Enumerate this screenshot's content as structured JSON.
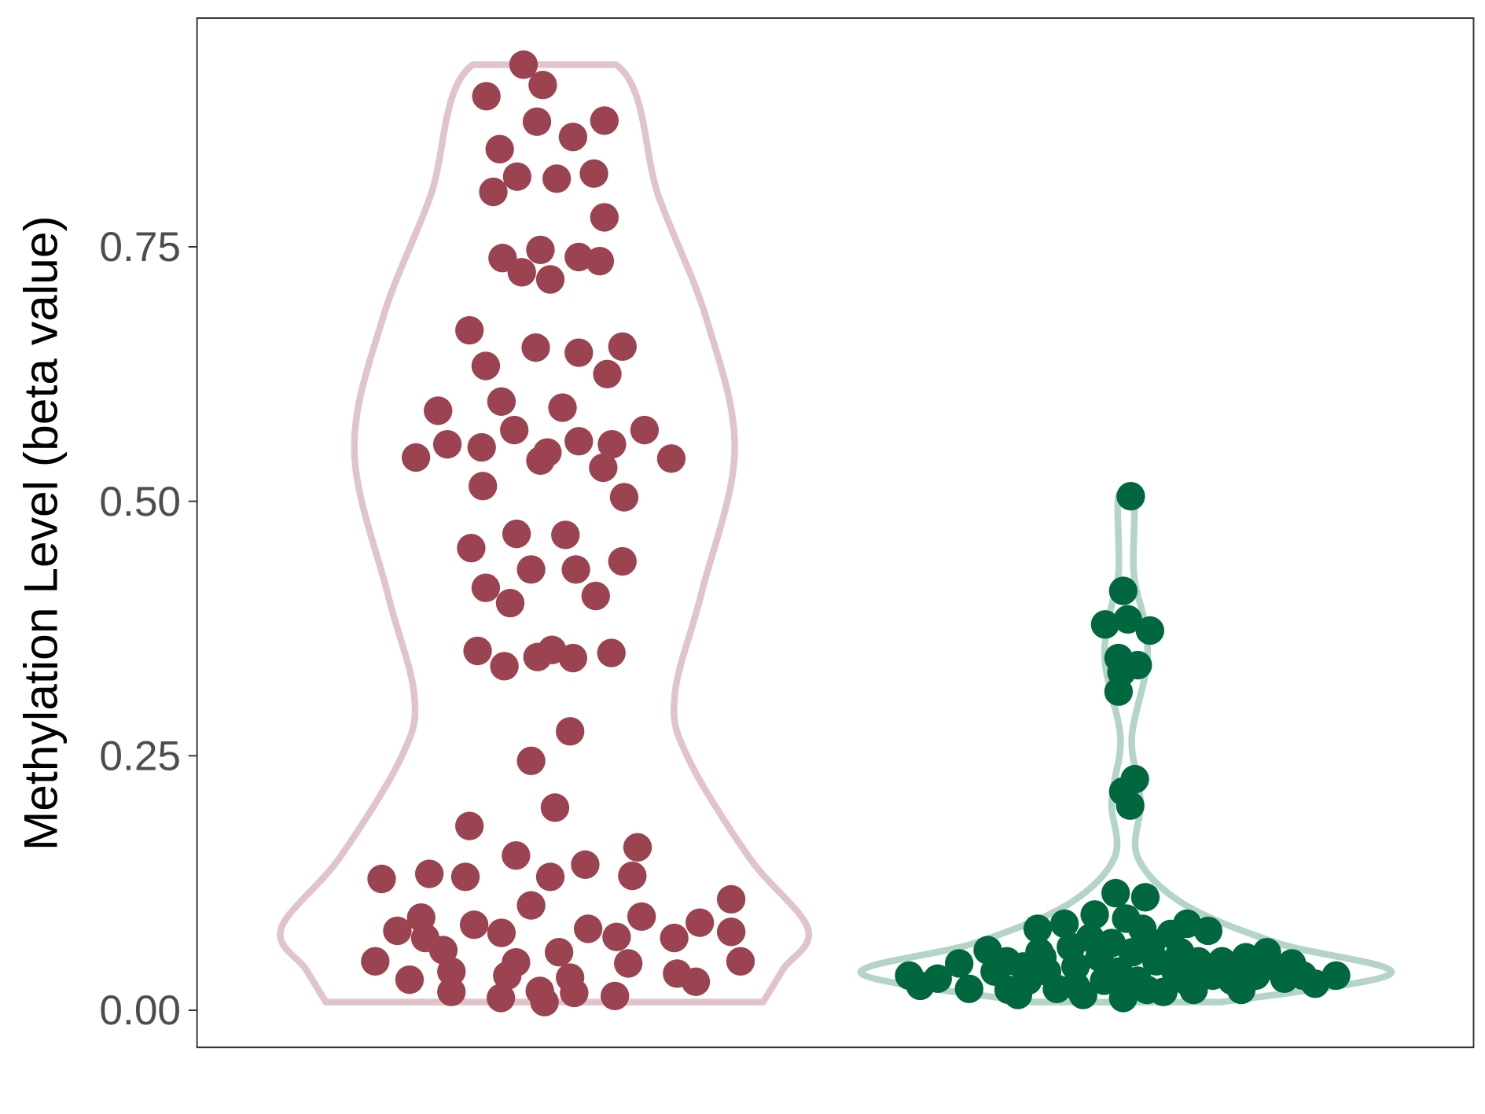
{
  "chart_data": {
    "type": "violin",
    "title": "",
    "xlabel": "",
    "ylabel": "Methylation Level (beta value)",
    "ylim": [
      -0.036,
      0.975
    ],
    "yticks": [
      0.0,
      0.25,
      0.5,
      0.75
    ],
    "ytick_labels": [
      "0.00",
      "0.25",
      "0.50",
      "0.75"
    ],
    "grid": false,
    "legend": "none",
    "groups": [
      {
        "position": 1,
        "point_color": "#9B4350",
        "violin_color": "#E0C4CA",
        "violin_density": [
          [
            0.008,
            0.376
          ],
          [
            0.04,
            0.41
          ],
          [
            0.08,
            0.453
          ],
          [
            0.15,
            0.352
          ],
          [
            0.25,
            0.245
          ],
          [
            0.31,
            0.224
          ],
          [
            0.41,
            0.27
          ],
          [
            0.55,
            0.327
          ],
          [
            0.68,
            0.278
          ],
          [
            0.8,
            0.196
          ],
          [
            0.929,
            0.123
          ]
        ],
        "points": [
          [
            0.964,
            0.929
          ],
          [
            0.997,
            0.909
          ],
          [
            0.9,
            0.898
          ],
          [
            0.987,
            0.873
          ],
          [
            1.103,
            0.874
          ],
          [
            1.049,
            0.858
          ],
          [
            0.923,
            0.846
          ],
          [
            0.953,
            0.819
          ],
          [
            1.021,
            0.817
          ],
          [
            1.085,
            0.822
          ],
          [
            0.912,
            0.804
          ],
          [
            1.103,
            0.779
          ],
          [
            0.928,
            0.739
          ],
          [
            0.993,
            0.747
          ],
          [
            1.059,
            0.74
          ],
          [
            1.095,
            0.736
          ],
          [
            0.961,
            0.725
          ],
          [
            1.01,
            0.718
          ],
          [
            0.871,
            0.668
          ],
          [
            0.985,
            0.651
          ],
          [
            1.059,
            0.646
          ],
          [
            1.134,
            0.652
          ],
          [
            0.899,
            0.633
          ],
          [
            1.108,
            0.625
          ],
          [
            0.926,
            0.598
          ],
          [
            1.031,
            0.592
          ],
          [
            0.817,
            0.589
          ],
          [
            0.948,
            0.57
          ],
          [
            1.172,
            0.57
          ],
          [
            0.779,
            0.543
          ],
          [
            0.833,
            0.556
          ],
          [
            0.892,
            0.553
          ],
          [
            1.005,
            0.548
          ],
          [
            0.993,
            0.54
          ],
          [
            1.059,
            0.559
          ],
          [
            1.116,
            0.556
          ],
          [
            1.101,
            0.533
          ],
          [
            1.218,
            0.542
          ],
          [
            0.894,
            0.515
          ],
          [
            1.137,
            0.504
          ],
          [
            0.952,
            0.468
          ],
          [
            1.036,
            0.467
          ],
          [
            0.874,
            0.454
          ],
          [
            0.977,
            0.433
          ],
          [
            1.054,
            0.433
          ],
          [
            1.134,
            0.441
          ],
          [
            0.899,
            0.415
          ],
          [
            0.941,
            0.4
          ],
          [
            1.088,
            0.407
          ],
          [
            0.885,
            0.353
          ],
          [
            0.931,
            0.338
          ],
          [
            0.988,
            0.347
          ],
          [
            1.013,
            0.354
          ],
          [
            1.049,
            0.346
          ],
          [
            1.115,
            0.351
          ],
          [
            1.044,
            0.274
          ],
          [
            0.977,
            0.245
          ],
          [
            1.018,
            0.199
          ],
          [
            0.871,
            0.181
          ],
          [
            0.951,
            0.152
          ],
          [
            1.16,
            0.16
          ],
          [
            0.72,
            0.129
          ],
          [
            0.802,
            0.134
          ],
          [
            0.864,
            0.131
          ],
          [
            1.01,
            0.131
          ],
          [
            1.07,
            0.143
          ],
          [
            1.151,
            0.132
          ],
          [
            1.321,
            0.109
          ],
          [
            0.977,
            0.103
          ],
          [
            0.788,
            0.091
          ],
          [
            1.167,
            0.092
          ],
          [
            0.747,
            0.078
          ],
          [
            0.795,
            0.071
          ],
          [
            0.879,
            0.084
          ],
          [
            0.926,
            0.076
          ],
          [
            1.075,
            0.08
          ],
          [
            1.124,
            0.072
          ],
          [
            1.223,
            0.071
          ],
          [
            1.267,
            0.086
          ],
          [
            1.321,
            0.077
          ],
          [
            0.826,
            0.059
          ],
          [
            0.709,
            0.048
          ],
          [
            1.025,
            0.057
          ],
          [
            0.951,
            0.047
          ],
          [
            1.144,
            0.046
          ],
          [
            1.337,
            0.048
          ],
          [
            0.768,
            0.03
          ],
          [
            0.84,
            0.038
          ],
          [
            0.936,
            0.034
          ],
          [
            1.044,
            0.032
          ],
          [
            1.228,
            0.036
          ],
          [
            1.26,
            0.028
          ],
          [
            0.84,
            0.018
          ],
          [
            0.925,
            0.012
          ],
          [
            0.992,
            0.019
          ],
          [
            1.0,
            0.008
          ],
          [
            1.051,
            0.017
          ],
          [
            1.121,
            0.014
          ]
        ]
      },
      {
        "position": 2,
        "point_color": "#00673F",
        "violin_color": "#B5D4C8",
        "violin_density": [
          [
            0.008,
            0.164
          ],
          [
            0.036,
            0.455
          ],
          [
            0.066,
            0.26
          ],
          [
            0.104,
            0.1
          ],
          [
            0.15,
            0.02
          ],
          [
            0.2,
            0.025
          ],
          [
            0.225,
            0.02
          ],
          [
            0.27,
            0.01
          ],
          [
            0.34,
            0.036
          ],
          [
            0.385,
            0.03
          ],
          [
            0.43,
            0.013
          ],
          [
            0.506,
            0.013
          ]
        ],
        "points": [
          [
            2.008,
            0.505
          ],
          [
            1.995,
            0.412
          ],
          [
            1.964,
            0.379
          ],
          [
            2.003,
            0.384
          ],
          [
            2.041,
            0.373
          ],
          [
            1.987,
            0.346
          ],
          [
            1.998,
            0.337
          ],
          [
            2.02,
            0.339
          ],
          [
            1.987,
            0.313
          ],
          [
            1.992,
            0.332
          ],
          [
            2.015,
            0.227
          ],
          [
            1.995,
            0.215
          ],
          [
            2.007,
            0.201
          ],
          [
            1.982,
            0.115
          ],
          [
            2.033,
            0.111
          ],
          [
            1.627,
            0.034
          ],
          [
            1.646,
            0.024
          ],
          [
            1.676,
            0.031
          ],
          [
            1.713,
            0.046
          ],
          [
            1.73,
            0.021
          ],
          [
            1.762,
            0.059
          ],
          [
            1.774,
            0.038
          ],
          [
            1.795,
            0.048
          ],
          [
            1.798,
            0.02
          ],
          [
            1.814,
            0.015
          ],
          [
            1.831,
            0.029
          ],
          [
            1.848,
            0.08
          ],
          [
            1.851,
            0.057
          ],
          [
            1.864,
            0.038
          ],
          [
            1.881,
            0.021
          ],
          [
            1.894,
            0.085
          ],
          [
            1.905,
            0.062
          ],
          [
            1.913,
            0.043
          ],
          [
            1.926,
            0.015
          ],
          [
            1.938,
            0.071
          ],
          [
            1.946,
            0.094
          ],
          [
            1.954,
            0.052
          ],
          [
            1.962,
            0.029
          ],
          [
            1.975,
            0.066
          ],
          [
            1.987,
            0.038
          ],
          [
            1.995,
            0.012
          ],
          [
            2.0,
            0.09
          ],
          [
            2.011,
            0.057
          ],
          [
            2.02,
            0.029
          ],
          [
            2.028,
            0.08
          ],
          [
            2.036,
            0.02
          ],
          [
            2.044,
            0.066
          ],
          [
            2.052,
            0.048
          ],
          [
            2.064,
            0.018
          ],
          [
            2.077,
            0.075
          ],
          [
            2.085,
            0.038
          ],
          [
            2.093,
            0.057
          ],
          [
            2.105,
            0.085
          ],
          [
            2.116,
            0.02
          ],
          [
            2.124,
            0.048
          ],
          [
            2.141,
            0.078
          ],
          [
            2.149,
            0.034
          ],
          [
            2.165,
            0.048
          ],
          [
            2.182,
            0.029
          ],
          [
            2.198,
            0.02
          ],
          [
            2.206,
            0.052
          ],
          [
            2.223,
            0.034
          ],
          [
            2.242,
            0.057
          ],
          [
            2.255,
            0.043
          ],
          [
            2.272,
            0.031
          ],
          [
            2.285,
            0.046
          ],
          [
            2.304,
            0.034
          ],
          [
            2.325,
            0.026
          ],
          [
            2.361,
            0.034
          ],
          [
            1.856,
            0.052
          ],
          [
            1.823,
            0.043
          ],
          [
            1.913,
            0.024
          ],
          [
            2.103,
            0.029
          ]
        ]
      }
    ]
  }
}
